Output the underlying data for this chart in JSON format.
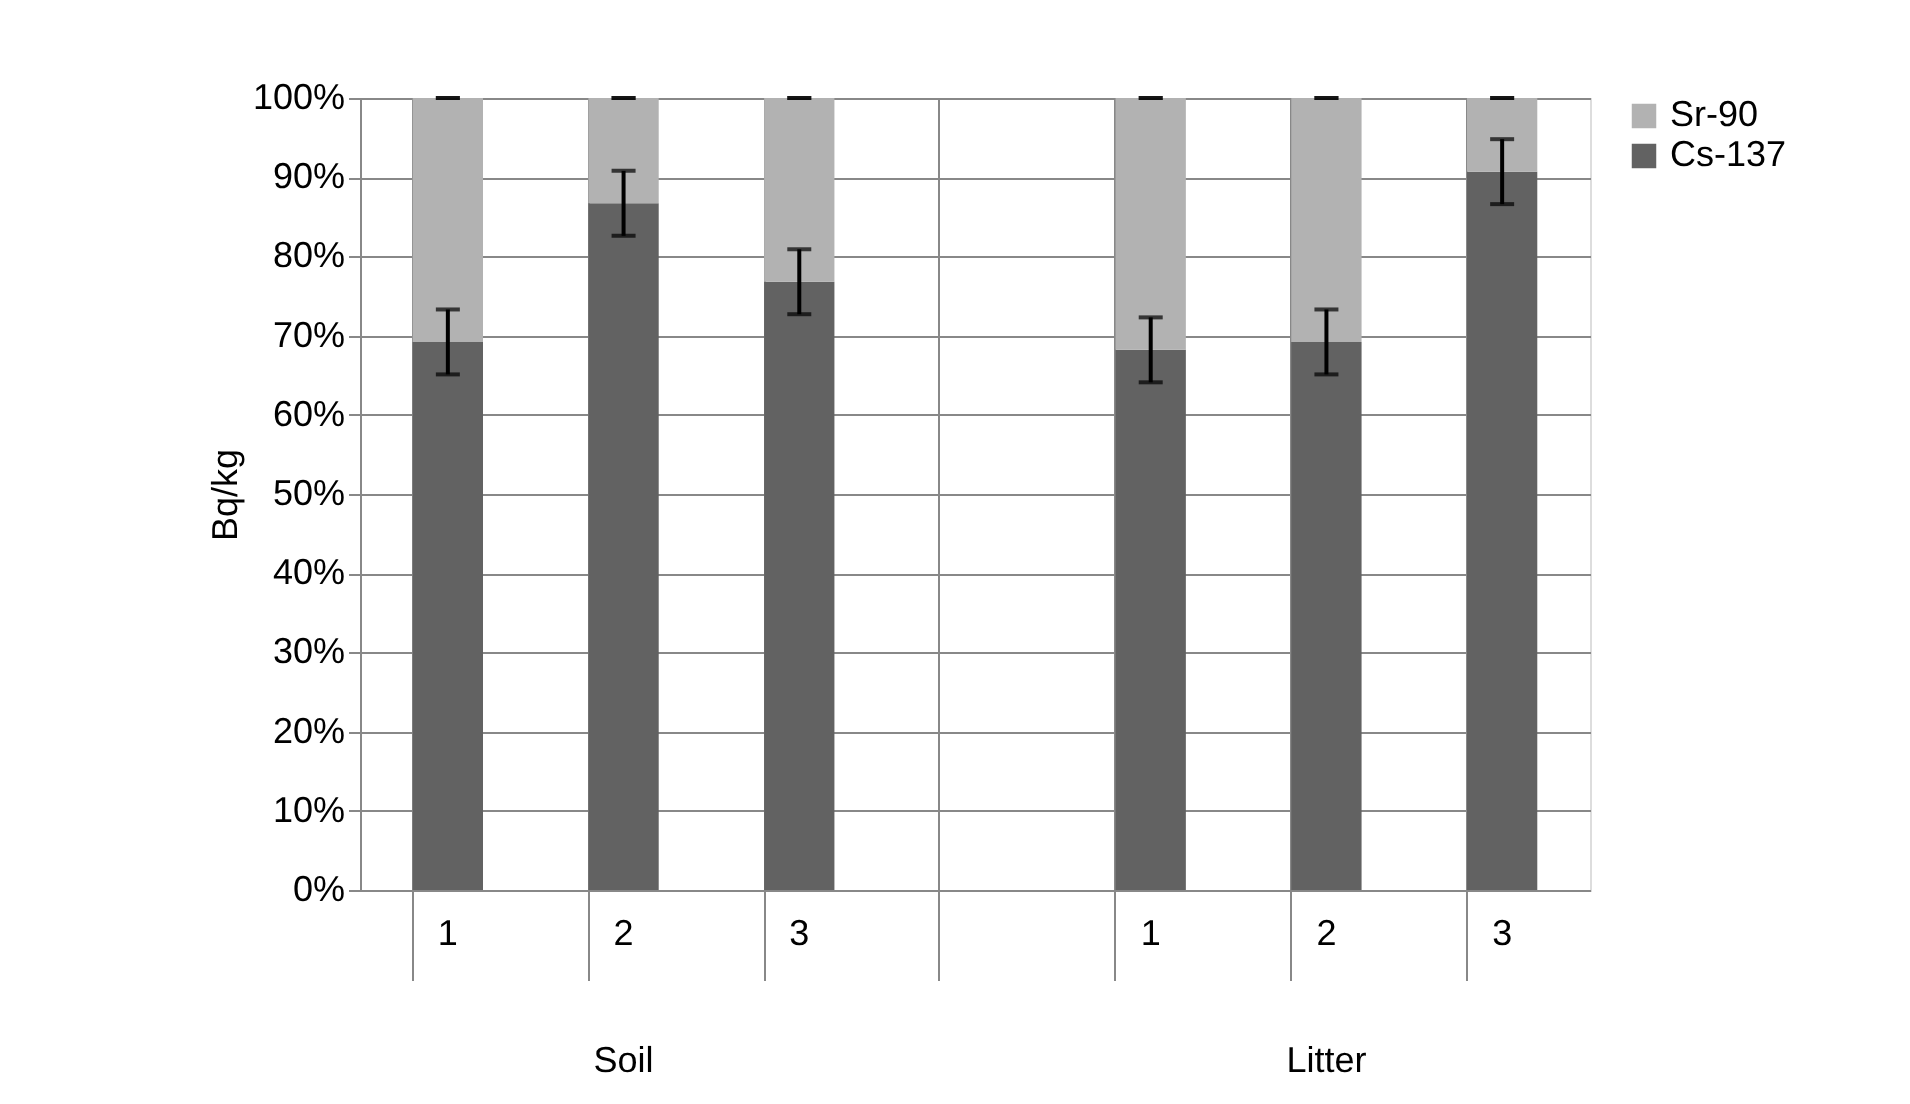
{
  "chart_data": {
    "type": "bar",
    "stacked": true,
    "ylabel": "Bq/kg",
    "categories": [
      "1",
      "2",
      "3",
      null,
      "1",
      "2",
      "3"
    ],
    "series": [
      {
        "name": "Cs-137",
        "color": "#626262",
        "values": [
          69.2,
          86.7,
          76.8,
          null,
          68.2,
          69.2,
          90.7
        ],
        "errors": [
          4.1,
          4.1,
          4.1,
          null,
          4.1,
          4.1,
          4.1
        ]
      },
      {
        "name": "Sr-90",
        "color": "#b2b2b2",
        "values": [
          30.8,
          13.3,
          23.2,
          null,
          31.8,
          30.8,
          9.3
        ],
        "errors": [
          0,
          0,
          0,
          null,
          0,
          0,
          0
        ]
      }
    ],
    "ylim": [
      0,
      100
    ],
    "yticks": [
      {
        "value": 0,
        "label": "0%"
      },
      {
        "value": 10,
        "label": "10%"
      },
      {
        "value": 20,
        "label": "20%"
      },
      {
        "value": 30,
        "label": "30%"
      },
      {
        "value": 40,
        "label": "40%"
      },
      {
        "value": 50,
        "label": "50%"
      },
      {
        "value": 60,
        "label": "60%"
      },
      {
        "value": 70,
        "label": "70%"
      },
      {
        "value": 80,
        "label": "80%"
      },
      {
        "value": 90,
        "label": "90%"
      },
      {
        "value": 100,
        "label": "100%"
      }
    ],
    "annotations": [
      "Soil",
      "Litter"
    ],
    "grid": true,
    "legend": "right"
  }
}
